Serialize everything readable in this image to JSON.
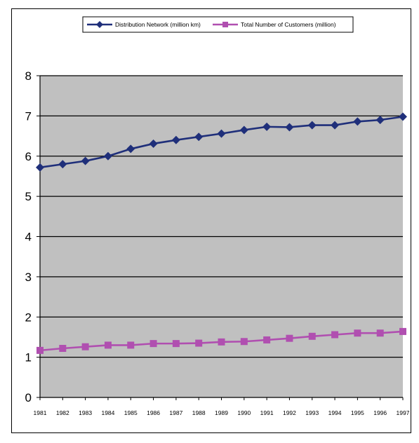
{
  "chart_data": {
    "type": "line",
    "title": "",
    "xlabel": "",
    "ylabel": "",
    "x": [
      "1981",
      "1982",
      "1983",
      "1984",
      "1985",
      "1986",
      "1987",
      "1988",
      "1989",
      "1990",
      "1991",
      "1992",
      "1993",
      "1994",
      "1995",
      "1996",
      "1997"
    ],
    "ylim": [
      0,
      8
    ],
    "yticks": [
      "0",
      "1",
      "2",
      "3",
      "4",
      "5",
      "6",
      "7",
      "8"
    ],
    "grid": "horizontal",
    "legend_position": "top",
    "background": "#c0c0c0",
    "series": [
      {
        "name": "Distribution Network (million km)",
        "color": "#1f2f7a",
        "marker": "diamond",
        "values": [
          5.72,
          5.8,
          5.88,
          6.0,
          6.18,
          6.31,
          6.4,
          6.48,
          6.56,
          6.65,
          6.73,
          6.72,
          6.77,
          6.77,
          6.86,
          6.9,
          6.98
        ]
      },
      {
        "name": "Total Number of Customers (million)",
        "color": "#b04fb0",
        "marker": "square",
        "values": [
          1.17,
          1.22,
          1.26,
          1.3,
          1.3,
          1.34,
          1.34,
          1.35,
          1.38,
          1.39,
          1.43,
          1.47,
          1.52,
          1.56,
          1.6,
          1.6,
          1.64
        ]
      }
    ]
  }
}
